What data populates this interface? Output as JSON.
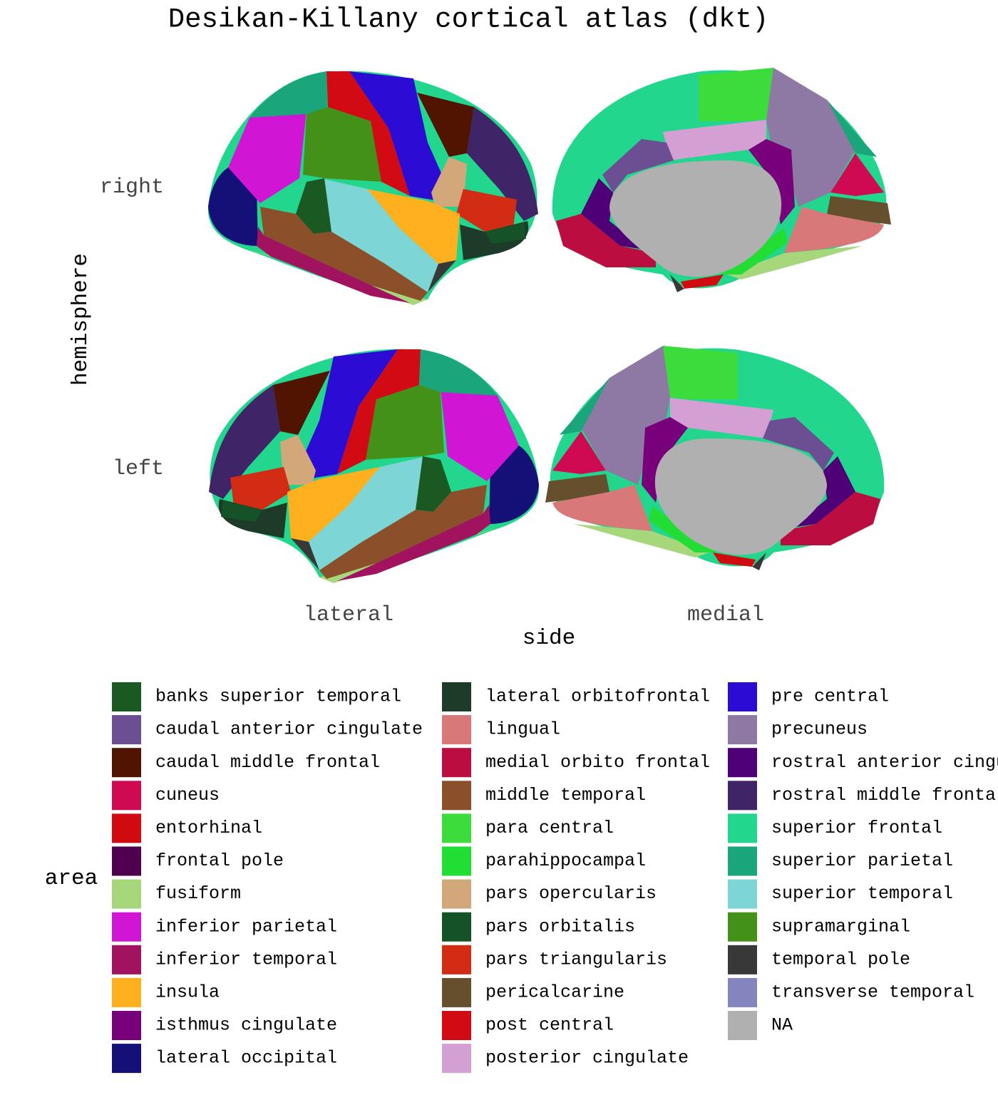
{
  "title": "Desikan-Killany cortical atlas (dkt)",
  "y_axis": {
    "label": "hemisphere",
    "categories": [
      "right",
      "left"
    ]
  },
  "x_axis": {
    "label": "side",
    "categories": [
      "lateral",
      "medial"
    ]
  },
  "legend": {
    "title": "area",
    "items": [
      {
        "name": "banks superior temporal",
        "color": "#1a5a22"
      },
      {
        "name": "caudal anterior cingulate",
        "color": "#6b4f92"
      },
      {
        "name": "caudal middle frontal",
        "color": "#501400"
      },
      {
        "name": "cuneus",
        "color": "#d00a52"
      },
      {
        "name": "entorhinal",
        "color": "#d10a10"
      },
      {
        "name": "frontal pole",
        "color": "#4f004f"
      },
      {
        "name": "fusiform",
        "color": "#a6d77b"
      },
      {
        "name": "inferior parietal",
        "color": "#d015d5"
      },
      {
        "name": "inferior temporal",
        "color": "#a2135f"
      },
      {
        "name": "insula",
        "color": "#ffb01f"
      },
      {
        "name": "isthmus cingulate",
        "color": "#78007a"
      },
      {
        "name": "lateral occipital",
        "color": "#141078"
      },
      {
        "name": "lateral orbitofrontal",
        "color": "#1e3b2a"
      },
      {
        "name": "lingual",
        "color": "#d97878"
      },
      {
        "name": "medial orbito frontal",
        "color": "#bb0d3f"
      },
      {
        "name": "middle temporal",
        "color": "#8b4f2a"
      },
      {
        "name": "para central",
        "color": "#3cdc3c"
      },
      {
        "name": "parahippocampal",
        "color": "#22dd33"
      },
      {
        "name": "pars opercularis",
        "color": "#d2a77a"
      },
      {
        "name": "pars orbitalis",
        "color": "#155228"
      },
      {
        "name": "pars triangularis",
        "color": "#d22c14"
      },
      {
        "name": "pericalcarine",
        "color": "#654f2d"
      },
      {
        "name": "post central",
        "color": "#d20a14"
      },
      {
        "name": "posterior cingulate",
        "color": "#d4a0d4"
      },
      {
        "name": "pre central",
        "color": "#2c0bd5"
      },
      {
        "name": "precuneus",
        "color": "#8e79a5"
      },
      {
        "name": "rostral anterior cingulate",
        "color": "#4f0076"
      },
      {
        "name": "rostral middle frontal",
        "color": "#3f2468"
      },
      {
        "name": "superior frontal",
        "color": "#22d68d"
      },
      {
        "name": "superior parietal",
        "color": "#1ba57a"
      },
      {
        "name": "superior temporal",
        "color": "#7dd5d5"
      },
      {
        "name": "supramarginal",
        "color": "#44911a"
      },
      {
        "name": "temporal pole",
        "color": "#383838"
      },
      {
        "name": "transverse temporal",
        "color": "#8484be"
      },
      {
        "name": "NA",
        "color": "#b0b0b0"
      }
    ]
  }
}
